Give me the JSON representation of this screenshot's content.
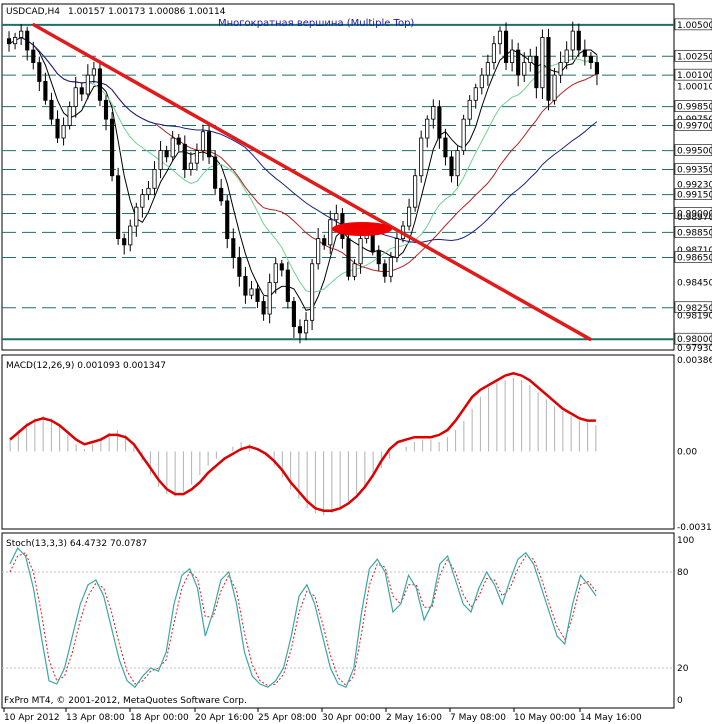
{
  "header": {
    "symbol": "USDCAD,H4",
    "ohlc": "1.00157 1.00173 1.00086 1.00114",
    "annotation": "Многократная вершина (Multiple Top)"
  },
  "macd_label": "MACD(12,26,9) 0.001093 0.001347",
  "stoch_label": "Stoch(13,3,3) 64.4732 70.0787",
  "copyright": "FxPro MT4, © 2001-2012, MetaQuotes Software Corp.",
  "colors": {
    "candle": "#000000",
    "trendline": "#e31a1a",
    "grid": "#1f6f6f",
    "ma_black": "#000000",
    "ma_navy": "#1a237e",
    "ma_darkred": "#b22222",
    "ma_green": "#6fd38f",
    "macd_signal": "#dd0000",
    "macd_hist": "#b0b0b0",
    "stoch_main": "#3aa6a6",
    "stoch_signal": "#e31a1a",
    "highlight": "#ee0000"
  },
  "chart_data": [
    {
      "type": "candlestick",
      "ylim": [
        0.9793,
        1.0065
      ],
      "price_labels": [
        "1.00500",
        "1.00250",
        "1.00100",
        "1.00010",
        "0.99850",
        "0.99750",
        "0.99700",
        "0.99500",
        "0.99350",
        "0.99230",
        "0.99150",
        "0.99000",
        "0.98970",
        "0.98850",
        "0.98710",
        "0.98650",
        "0.98450",
        "0.98250",
        "0.98190",
        "0.98000",
        "0.97930"
      ],
      "level_lines": [
        1.005,
        1.0025,
        1.001,
        0.9985,
        0.997,
        0.995,
        0.9935,
        0.9915,
        0.99,
        0.9885,
        0.9865,
        0.9825,
        0.98
      ],
      "x_labels": [
        "10 Apr 2012",
        "13 Apr 08:00",
        "18 Apr 00:00",
        "20 Apr 16:00",
        "25 Apr 08:00",
        "30 Apr 00:00",
        "2 May 16:00",
        "7 May 08:00",
        "10 May 00:00",
        "14 May 16:00"
      ],
      "closes": [
        1.0035,
        1.004,
        1.0045,
        1.003,
        1.002,
        1.0005,
        0.999,
        0.9975,
        0.996,
        0.997,
        0.9985,
        1.0,
        0.9995,
        1.001,
        1.0015,
        0.999,
        0.9975,
        0.993,
        0.988,
        0.9875,
        0.989,
        0.9905,
        0.9915,
        0.992,
        0.9935,
        0.995,
        0.9945,
        0.996,
        0.9955,
        0.9935,
        0.994,
        0.995,
        0.9965,
        0.9945,
        0.992,
        0.991,
        0.988,
        0.9865,
        0.985,
        0.9835,
        0.984,
        0.983,
        0.982,
        0.9845,
        0.986,
        0.9855,
        0.983,
        0.981,
        0.9805,
        0.9815,
        0.986,
        0.988,
        0.9875,
        0.9895,
        0.99,
        0.988,
        0.985,
        0.986,
        0.988,
        0.9885,
        0.987,
        0.986,
        0.985,
        0.9865,
        0.988,
        0.989,
        0.9905,
        0.993,
        0.996,
        0.9975,
        0.9985,
        0.996,
        0.9945,
        0.993,
        0.995,
        0.9975,
        0.999,
        1.0,
        1.001,
        1.002,
        1.0035,
        1.0045,
        1.002,
        1.003,
        1.001,
        1.002,
        1.0025,
        1.0,
        1.004,
        0.999,
        1.001,
        1.002,
        1.003,
        1.0045,
        1.003,
        1.0025,
        1.002,
        1.0011
      ],
      "trendline": {
        "from": [
          "10 Apr 2012",
          1.005
        ],
        "to": [
          "14 May 16:00",
          0.98
        ]
      }
    },
    {
      "type": "line",
      "name": "MACD(12,26,9)",
      "ylim": [
        -0.00319,
        0.00386
      ],
      "tick_labels": [
        "0.00386",
        "0.00",
        "-0.00319"
      ],
      "histogram": [
        0.0006,
        0.0009,
        0.0012,
        0.0014,
        0.0015,
        0.0014,
        0.0011,
        0.0007,
        0.0003,
        0.0001,
        0.0003,
        0.0006,
        0.0008,
        0.0009,
        0.0007,
        0.0002,
        -0.0004,
        -0.001,
        -0.0015,
        -0.0018,
        -0.0019,
        -0.0017,
        -0.0014,
        -0.001,
        -0.0006,
        -0.0003,
        0.0,
        0.0002,
        0.0004,
        0.0003,
        0.0001,
        -0.0002,
        -0.0006,
        -0.0011,
        -0.0016,
        -0.002,
        -0.0024,
        -0.0026,
        -0.0027,
        -0.0026,
        -0.0024,
        -0.0021,
        -0.0018,
        -0.0015,
        -0.0011,
        -0.0007,
        -0.0003,
        0.0,
        0.0002,
        0.0004,
        0.0005,
        0.0005,
        0.0004,
        0.0006,
        0.0009,
        0.0013,
        0.0018,
        0.0023,
        0.0027,
        0.0029,
        0.003,
        0.0031,
        0.003,
        0.0028,
        0.0025,
        0.0022,
        0.0019,
        0.0017,
        0.0015,
        0.0013,
        0.0012,
        0.0011
      ],
      "signal": [
        0.0005,
        0.0008,
        0.0011,
        0.0013,
        0.0014,
        0.0013,
        0.0011,
        0.0008,
        0.0005,
        0.0003,
        0.0004,
        0.0005,
        0.0007,
        0.0007,
        0.0006,
        0.0003,
        -0.0002,
        -0.0007,
        -0.0012,
        -0.0016,
        -0.0018,
        -0.0018,
        -0.0016,
        -0.0013,
        -0.0009,
        -0.0006,
        -0.0003,
        -0.0001,
        0.0001,
        0.0002,
        0.0001,
        -0.0001,
        -0.0004,
        -0.0008,
        -0.0013,
        -0.0017,
        -0.0021,
        -0.0024,
        -0.0025,
        -0.0025,
        -0.0024,
        -0.0022,
        -0.0019,
        -0.0015,
        -0.001,
        -0.0004,
        0.0001,
        0.0004,
        0.0005,
        0.0006,
        0.0006,
        0.0006,
        0.0007,
        0.0009,
        0.0013,
        0.0018,
        0.0023,
        0.0026,
        0.0028,
        0.003,
        0.0032,
        0.0033,
        0.0032,
        0.003,
        0.0027,
        0.0024,
        0.0021,
        0.0018,
        0.0016,
        0.0014,
        0.0013,
        0.0013
      ]
    },
    {
      "type": "line",
      "name": "Stoch(13,3,3)",
      "ylim": [
        0,
        100
      ],
      "tick_labels": [
        "100",
        "80",
        "20",
        "0"
      ],
      "main": [
        85,
        95,
        90,
        70,
        40,
        12,
        10,
        20,
        40,
        60,
        72,
        75,
        65,
        45,
        25,
        12,
        8,
        15,
        20,
        18,
        30,
        60,
        78,
        82,
        70,
        40,
        55,
        75,
        80,
        60,
        30,
        15,
        10,
        8,
        12,
        20,
        40,
        65,
        72,
        60,
        40,
        20,
        10,
        8,
        20,
        55,
        82,
        88,
        80,
        55,
        60,
        78,
        70,
        50,
        60,
        85,
        90,
        75,
        60,
        55,
        70,
        80,
        72,
        60,
        75,
        88,
        92,
        85,
        70,
        55,
        40,
        35,
        60,
        78,
        72,
        65
      ],
      "signal": [
        80,
        90,
        92,
        80,
        55,
        25,
        12,
        15,
        30,
        50,
        65,
        73,
        70,
        55,
        35,
        18,
        10,
        12,
        18,
        20,
        25,
        48,
        70,
        80,
        76,
        52,
        52,
        68,
        78,
        68,
        42,
        22,
        12,
        9,
        10,
        16,
        32,
        55,
        68,
        65,
        48,
        28,
        14,
        9,
        15,
        42,
        72,
        85,
        83,
        65,
        60,
        72,
        72,
        58,
        58,
        78,
        88,
        80,
        66,
        58,
        65,
        76,
        75,
        65,
        70,
        82,
        90,
        88,
        76,
        60,
        46,
        38,
        52,
        72,
        74,
        68
      ]
    }
  ]
}
